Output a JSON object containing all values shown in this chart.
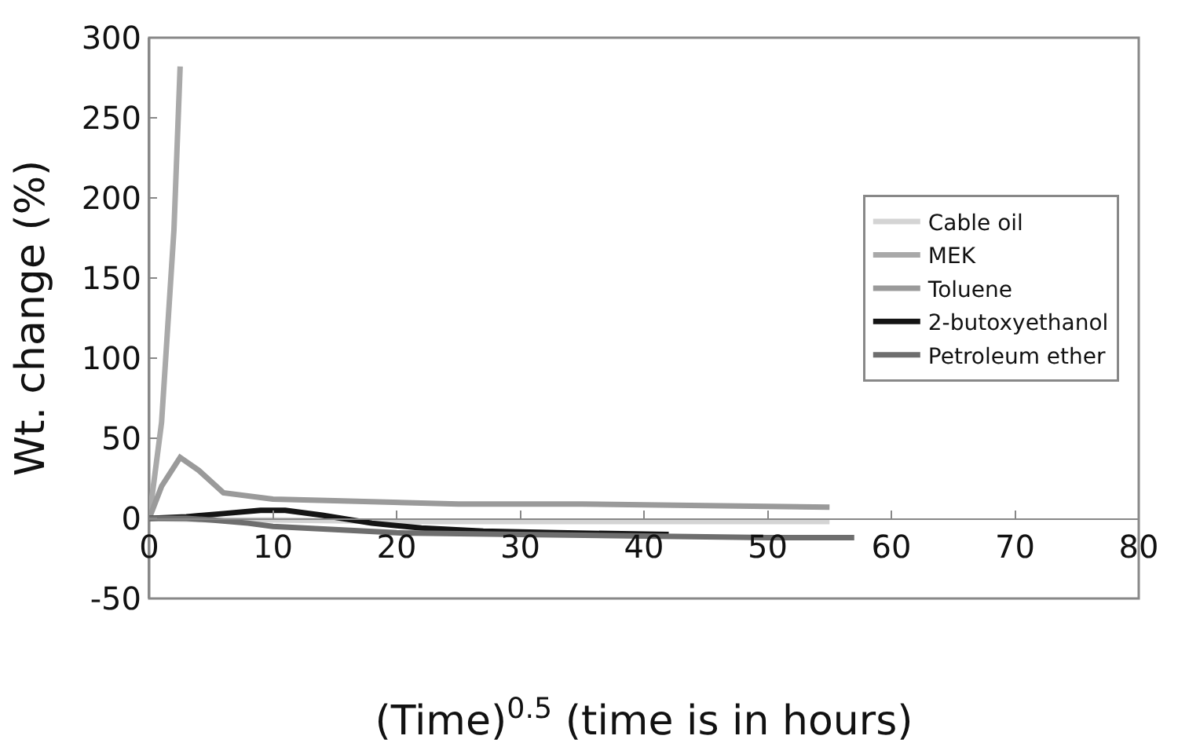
{
  "chart_data": {
    "type": "line",
    "xlabel": "(Time)$^{0.5}$ (time is in hours)",
    "ylabel": "Wt. change (%)",
    "xlim": [
      0,
      80
    ],
    "xticks": [
      0,
      10,
      20,
      30,
      40,
      50,
      60,
      70,
      80
    ],
    "ylim": [
      -50,
      300
    ],
    "yticks": [
      -50,
      0,
      50,
      100,
      150,
      200,
      250,
      300
    ],
    "grid": false,
    "legend": "right",
    "marker": "none",
    "line_style": "solid",
    "series": [
      {
        "name": "Cable oil",
        "color": "#d4d4d4",
        "x": [
          0,
          5,
          10,
          20,
          30,
          40,
          55
        ],
        "values": [
          0,
          -1,
          -1,
          -2,
          -2,
          -2,
          -2
        ]
      },
      {
        "name": "MEK",
        "color": "#a9a9a9",
        "x": [
          0,
          1,
          2,
          2.5
        ],
        "values": [
          0,
          60,
          180,
          282
        ]
      },
      {
        "name": "Toluene",
        "color": "#9a9a9a",
        "x": [
          0,
          1,
          2.5,
          4,
          6,
          10,
          15,
          25,
          35,
          45,
          55
        ],
        "values": [
          0,
          20,
          38,
          30,
          16,
          12,
          11,
          9,
          9,
          8,
          7
        ]
      },
      {
        "name": "2-butoxyethanol",
        "color": "#141414",
        "x": [
          0,
          3,
          6,
          9,
          11,
          14,
          18,
          22,
          27,
          33,
          42
        ],
        "values": [
          0,
          1,
          3,
          5,
          5,
          2,
          -3,
          -6,
          -8,
          -9,
          -10
        ]
      },
      {
        "name": "Petroleum ether",
        "color": "#6e6e6e",
        "x": [
          0,
          3,
          5,
          8,
          10,
          15,
          20,
          30,
          40,
          50,
          57
        ],
        "values": [
          0,
          0,
          -1,
          -3,
          -5,
          -7,
          -9,
          -10,
          -11,
          -12,
          -12
        ]
      }
    ]
  }
}
